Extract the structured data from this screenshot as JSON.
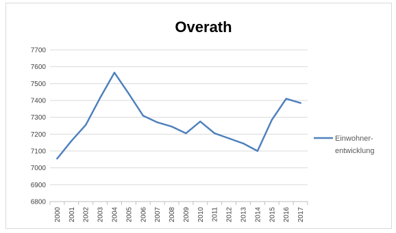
{
  "chart_data": {
    "type": "line",
    "title": "Overath",
    "xlabel": "",
    "ylabel": "",
    "ylim": [
      6800,
      7700
    ],
    "yticks": [
      6800,
      6900,
      7000,
      7100,
      7200,
      7300,
      7400,
      7500,
      7600,
      7700
    ],
    "categories": [
      "2000",
      "2001",
      "2002",
      "2003",
      "2004",
      "2005",
      "2006",
      "2007",
      "2008",
      "2009",
      "2010",
      "2011",
      "2012",
      "2013",
      "2014",
      "2015",
      "2016",
      "2017"
    ],
    "series": [
      {
        "name": "Einwohner-entwicklung",
        "name_lines": [
          "Einwohner-",
          "entwicklung"
        ],
        "color": "#4f81bd",
        "values": [
          7055,
          7160,
          7255,
          7415,
          7565,
          7440,
          7310,
          7270,
          7245,
          7205,
          7275,
          7205,
          7175,
          7145,
          7100,
          7285,
          7410,
          7385
        ]
      }
    ],
    "grid": true,
    "legend_position": "right"
  }
}
